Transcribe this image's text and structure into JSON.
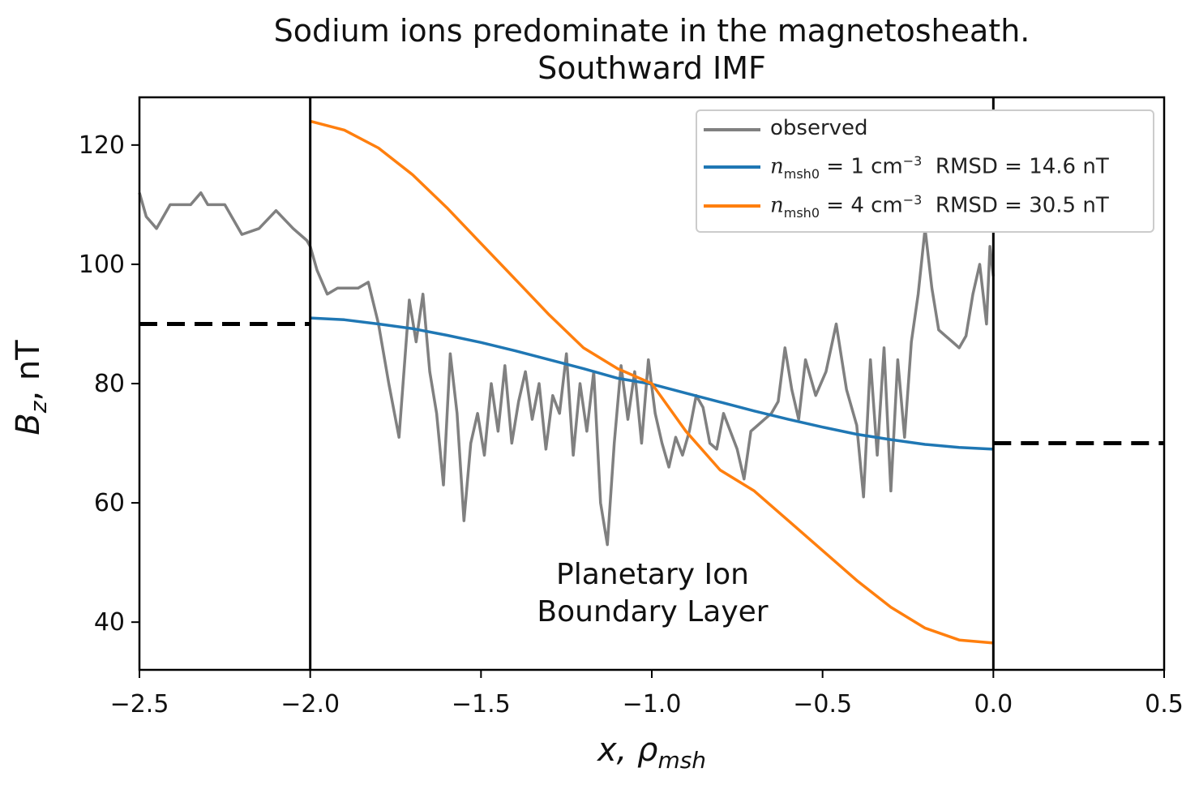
{
  "title_line1": "Sodium ions predominate in the magnetosheath.",
  "title_line2": "Southward IMF",
  "annotation_line1": "Planetary Ion",
  "annotation_line2": "Boundary Layer",
  "chart_data": {
    "type": "line",
    "title": "Sodium ions predominate in the magnetosheath. Southward IMF",
    "xlabel": "x, ρmsh",
    "ylabel": "Bz, nT",
    "xlim": [
      -2.5,
      0.5
    ],
    "ylim": [
      32,
      128
    ],
    "xticks": [
      -2.5,
      -2.0,
      -1.5,
      -1.0,
      -0.5,
      0.0,
      0.5
    ],
    "xtick_labels": [
      "−2.5",
      "−2.0",
      "−1.5",
      "−1.0",
      "−0.5",
      "0.0",
      "0.5"
    ],
    "yticks": [
      40,
      60,
      80,
      100,
      120
    ],
    "ytick_labels": [
      "40",
      "60",
      "80",
      "100",
      "120"
    ],
    "grid": false,
    "legend_position": "top-right",
    "series": [
      {
        "name": "observed",
        "color": "#808080",
        "x": [
          -2.5,
          -2.48,
          -2.45,
          -2.41,
          -2.38,
          -2.35,
          -2.32,
          -2.3,
          -2.28,
          -2.25,
          -2.2,
          -2.15,
          -2.1,
          -2.05,
          -2.01,
          -2.0,
          -1.98,
          -1.95,
          -1.92,
          -1.89,
          -1.86,
          -1.83,
          -1.8,
          -1.77,
          -1.74,
          -1.71,
          -1.69,
          -1.67,
          -1.65,
          -1.63,
          -1.61,
          -1.59,
          -1.57,
          -1.55,
          -1.53,
          -1.51,
          -1.49,
          -1.47,
          -1.45,
          -1.43,
          -1.41,
          -1.39,
          -1.37,
          -1.35,
          -1.33,
          -1.31,
          -1.29,
          -1.27,
          -1.25,
          -1.23,
          -1.21,
          -1.19,
          -1.17,
          -1.15,
          -1.13,
          -1.11,
          -1.09,
          -1.07,
          -1.05,
          -1.03,
          -1.01,
          -0.99,
          -0.97,
          -0.95,
          -0.93,
          -0.91,
          -0.89,
          -0.87,
          -0.85,
          -0.83,
          -0.81,
          -0.79,
          -0.77,
          -0.75,
          -0.73,
          -0.71,
          -0.69,
          -0.67,
          -0.65,
          -0.63,
          -0.61,
          -0.59,
          -0.57,
          -0.55,
          -0.52,
          -0.49,
          -0.46,
          -0.43,
          -0.4,
          -0.38,
          -0.36,
          -0.34,
          -0.32,
          -0.3,
          -0.28,
          -0.26,
          -0.24,
          -0.22,
          -0.2,
          -0.18,
          -0.16,
          -0.14,
          -0.12,
          -0.1,
          -0.08,
          -0.06,
          -0.04,
          -0.02,
          -0.01,
          0.0
        ],
        "y": [
          112,
          108,
          106,
          110,
          110,
          110,
          112,
          110,
          110,
          110,
          105,
          106,
          109,
          106,
          104,
          103,
          99,
          95,
          96,
          96,
          96,
          97,
          90,
          80,
          71,
          94,
          87,
          95,
          82,
          75,
          63,
          85,
          75,
          57,
          70,
          75,
          68,
          80,
          72,
          83,
          70,
          77,
          82,
          74,
          80,
          69,
          78,
          75,
          85,
          68,
          80,
          72,
          82,
          60,
          53,
          70,
          83,
          74,
          82,
          70,
          84,
          75,
          70,
          66,
          71,
          68,
          72,
          78,
          76,
          70,
          69,
          75,
          72,
          69,
          64,
          72,
          73,
          74,
          75,
          77,
          86,
          79,
          74,
          84,
          78,
          82,
          90,
          79,
          73,
          61,
          84,
          68,
          86,
          62,
          84,
          71,
          87,
          95,
          106,
          96,
          89,
          88,
          87,
          86,
          88,
          95,
          100,
          90,
          103,
          98
        ],
        "y_note": "observed trace beyond x=0 not shown"
      },
      {
        "name": "n_msh0 = 1 cm^-3  RMSD = 14.6 nT",
        "color": "#1f77b4",
        "x": [
          -2.0,
          -1.9,
          -1.8,
          -1.7,
          -1.6,
          -1.5,
          -1.4,
          -1.3,
          -1.2,
          -1.1,
          -1.0,
          -0.9,
          -0.8,
          -0.7,
          -0.6,
          -0.5,
          -0.4,
          -0.3,
          -0.2,
          -0.1,
          0.0
        ],
        "y": [
          91,
          90.7,
          90.0,
          89.2,
          88.1,
          86.9,
          85.5,
          84.0,
          82.5,
          80.9,
          79.9,
          78.4,
          76.9,
          75.4,
          74.0,
          72.7,
          71.5,
          70.6,
          69.8,
          69.3,
          69.0
        ]
      },
      {
        "name": "n_msh0 = 4 cm^-3  RMSD = 30.5 nT",
        "color": "#ff7f0e",
        "x": [
          -2.0,
          -1.9,
          -1.8,
          -1.7,
          -1.6,
          -1.5,
          -1.4,
          -1.3,
          -1.2,
          -1.1,
          -1.0,
          -0.9,
          -0.8,
          -0.7,
          -0.6,
          -0.5,
          -0.4,
          -0.3,
          -0.2,
          -0.1,
          0.0
        ],
        "y": [
          124,
          122.5,
          119.5,
          115.0,
          109.5,
          103.5,
          97.5,
          91.5,
          86.0,
          82.5,
          80.0,
          72.0,
          65.5,
          62.0,
          57.0,
          52.0,
          47.0,
          42.5,
          39.0,
          37.0,
          36.5
        ]
      },
      {
        "name": "",
        "color": "#000000",
        "dashed": true,
        "x": [
          -2.5,
          -2.0
        ],
        "y": [
          90,
          90
        ]
      },
      {
        "name": "",
        "color": "#000000",
        "dashed": true,
        "x": [
          0.0,
          0.5
        ],
        "y": [
          70,
          70
        ]
      }
    ],
    "vlines": [
      -2.0,
      0.0
    ]
  },
  "legend": {
    "observed": "observed",
    "blue_prefix": "n",
    "blue_sub": "msh0",
    "blue_rest": " = 1 cm",
    "blue_sup": "−3",
    "blue_rmsd": "  RMSD = 14.6 nT",
    "orange_prefix": "n",
    "orange_sub": "msh0",
    "orange_rest": " = 4 cm",
    "orange_sup": "−3",
    "orange_rmsd": "  RMSD = 30.5 nT"
  },
  "axis_labels": {
    "x_main": "x, ρ",
    "x_sub": "msh",
    "y_main": "B",
    "y_sub": "z",
    "y_rest": ", nT"
  }
}
